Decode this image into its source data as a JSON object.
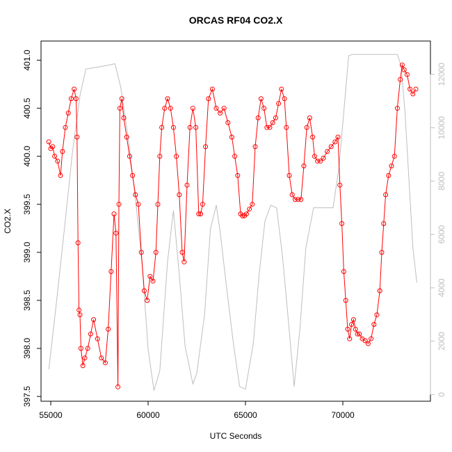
{
  "chart_data": {
    "type": "line",
    "title": "ORCAS RF04 CO2.X",
    "xlabel": "UTC Seconds",
    "ylabel": "CO2.X",
    "xlim": [
      54500,
      74500
    ],
    "ylim": [
      397.45,
      401.2
    ],
    "y2lim": [
      -250,
      13250
    ],
    "x_ticks": [
      55000,
      60000,
      65000,
      70000
    ],
    "y_ticks": [
      397.5,
      398.0,
      398.5,
      399.0,
      399.5,
      400.0,
      400.5,
      401.0
    ],
    "y2_ticks": [
      0,
      2000,
      4000,
      6000,
      8000,
      10000,
      12000
    ],
    "x_tick_labels": [
      "55000",
      "60000",
      "65000",
      "70000"
    ],
    "y_tick_labels": [
      "397.5",
      "398.0",
      "398.5",
      "399.0",
      "399.5",
      "400.0",
      "400.5",
      "401.0"
    ],
    "y2_tick_labels": [
      "0",
      "2000",
      "4000",
      "6000",
      "8000",
      "10000",
      "12000"
    ],
    "grid": false,
    "colors": {
      "co2": "#ff0000",
      "altitude": "#bebebe",
      "axis": "#000000",
      "right_axis": "#bebebe"
    },
    "series": [
      {
        "role": "co2",
        "marker": "open-circle",
        "x": [
          54900,
          55000,
          55100,
          55200,
          55350,
          55500,
          55600,
          55750,
          55900,
          56050,
          56200,
          56300,
          56350,
          56400,
          56450,
          56500,
          56550,
          56650,
          56750,
          56900,
          57050,
          57200,
          57400,
          57600,
          57800,
          57950,
          58100,
          58250,
          58350,
          58450,
          58500,
          58550,
          58650,
          58750,
          58900,
          59050,
          59200,
          59350,
          59500,
          59650,
          59800,
          59950,
          60100,
          60250,
          60400,
          60500,
          60600,
          60700,
          60850,
          61000,
          61150,
          61300,
          61450,
          61600,
          61750,
          61850,
          62000,
          62150,
          62300,
          62450,
          62600,
          62700,
          62800,
          62950,
          63100,
          63300,
          63500,
          63700,
          63900,
          64100,
          64300,
          64450,
          64600,
          64750,
          64850,
          64950,
          65050,
          65200,
          65350,
          65500,
          65650,
          65800,
          65950,
          66100,
          66250,
          66400,
          66550,
          66700,
          66850,
          67000,
          67100,
          67250,
          67400,
          67550,
          67700,
          67850,
          68000,
          68150,
          68300,
          68450,
          68550,
          68700,
          68850,
          69000,
          69200,
          69400,
          69600,
          69750,
          69850,
          69950,
          70050,
          70150,
          70250,
          70350,
          70450,
          70550,
          70650,
          70750,
          70850,
          71000,
          71150,
          71300,
          71450,
          71600,
          71750,
          71900,
          72000,
          72100,
          72200,
          72350,
          72500,
          72650,
          72800,
          72950,
          73050,
          73150,
          73300,
          73450,
          73600,
          73750
        ],
        "values": [
          400.15,
          400.08,
          400.1,
          400.0,
          399.95,
          399.8,
          400.05,
          400.3,
          400.45,
          400.6,
          400.7,
          400.6,
          400.2,
          399.1,
          398.4,
          398.35,
          398.0,
          397.82,
          397.9,
          398.0,
          398.15,
          398.3,
          398.1,
          397.9,
          397.85,
          398.2,
          398.8,
          399.4,
          399.2,
          397.6,
          399.5,
          400.5,
          400.6,
          400.4,
          400.2,
          400.0,
          399.8,
          399.6,
          399.5,
          399.0,
          398.6,
          398.5,
          398.75,
          398.7,
          399.0,
          399.5,
          400.0,
          400.3,
          400.5,
          400.6,
          400.5,
          400.3,
          400.0,
          399.6,
          399.0,
          398.9,
          399.7,
          400.3,
          400.5,
          400.3,
          399.4,
          399.4,
          399.5,
          400.1,
          400.6,
          400.7,
          400.5,
          400.45,
          400.5,
          400.35,
          400.2,
          400.0,
          399.8,
          399.4,
          399.38,
          399.38,
          399.4,
          399.45,
          399.5,
          400.1,
          400.4,
          400.6,
          400.5,
          400.3,
          400.3,
          400.35,
          400.4,
          400.55,
          400.7,
          400.6,
          400.3,
          399.8,
          399.6,
          399.55,
          399.55,
          399.55,
          399.9,
          400.3,
          400.4,
          400.2,
          400.0,
          399.95,
          399.95,
          399.98,
          400.05,
          400.1,
          400.15,
          400.2,
          399.7,
          399.3,
          398.8,
          398.5,
          398.2,
          398.1,
          398.25,
          398.3,
          398.2,
          398.15,
          398.15,
          398.1,
          398.08,
          398.05,
          398.1,
          398.25,
          398.35,
          398.6,
          399.0,
          399.3,
          399.6,
          399.8,
          399.9,
          400.0,
          400.5,
          400.8,
          400.95,
          400.9,
          400.85,
          400.7,
          400.65,
          400.7
        ]
      },
      {
        "role": "altitude",
        "axis": "right",
        "x": [
          54900,
          55300,
          55700,
          56100,
          56500,
          56800,
          57200,
          57600,
          58000,
          58300,
          58600,
          59000,
          59400,
          59700,
          60000,
          60300,
          60600,
          61000,
          61300,
          61600,
          61900,
          62300,
          62500,
          62900,
          63200,
          63500,
          63700,
          64000,
          64400,
          64700,
          65000,
          65400,
          65700,
          66000,
          66300,
          66600,
          66900,
          67200,
          67500,
          67800,
          68100,
          68500,
          68800,
          69200,
          69500,
          69800,
          70100,
          70300,
          70500,
          70800,
          71200,
          71600,
          72000,
          72400,
          72800,
          73000,
          73200,
          73400,
          73600,
          73800
        ],
        "values": [
          950,
          3500,
          6200,
          9000,
          11200,
          12200,
          12250,
          12300,
          12350,
          12400,
          11500,
          9500,
          7000,
          4800,
          1700,
          150,
          900,
          5000,
          6900,
          4500,
          1800,
          400,
          800,
          3000,
          6200,
          7100,
          6100,
          4200,
          1800,
          300,
          200,
          1900,
          4500,
          6500,
          7100,
          7000,
          5200,
          2800,
          300,
          2500,
          5500,
          7000,
          7000,
          7000,
          7000,
          8500,
          11000,
          12700,
          12750,
          12750,
          12750,
          12750,
          12750,
          12750,
          12750,
          12300,
          10500,
          8000,
          5500,
          4200
        ]
      }
    ]
  }
}
